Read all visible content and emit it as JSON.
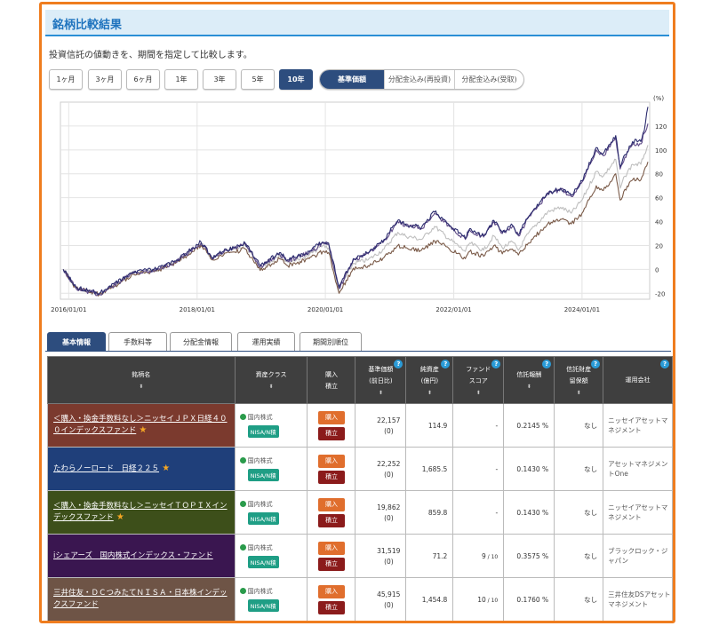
{
  "title": "銘柄比較結果",
  "description": "投資信託の値動きを、期間を指定して比較します。",
  "periods": [
    "1ヶ月",
    "3ヶ月",
    "6ヶ月",
    "1年",
    "3年",
    "5年",
    "10年"
  ],
  "active_period": "10年",
  "basis_tabs": [
    "基準価額",
    "分配金込み(再投資)",
    "分配金込み(受取)"
  ],
  "active_basis": "基準価額",
  "chart_data": {
    "type": "line",
    "title": "",
    "ylabel": "(%)",
    "ylim": [
      -25,
      140
    ],
    "yticks": [
      -20,
      0,
      20,
      40,
      60,
      80,
      100,
      120
    ],
    "xlim": [
      "2015-11-15",
      "2025-01-20"
    ],
    "xtick_labels": [
      "2016/01/01",
      "2018/01/01",
      "2020/01/01",
      "2022/01/01",
      "2024/01/01"
    ],
    "xticks": [
      "2016-01-01",
      "2018-01-01",
      "2020-01-01",
      "2022-01-01",
      "2024-01-01"
    ],
    "grid": true,
    "series": [
      {
        "color": "#bfbfbf",
        "points": [
          [
            "2015-12-01",
            0
          ],
          [
            "2016-02-12",
            -16
          ],
          [
            "2016-06-24",
            -21
          ],
          [
            "2016-11-01",
            -9
          ],
          [
            "2017-01-01",
            -3
          ],
          [
            "2017-05-01",
            -1
          ],
          [
            "2017-09-01",
            6
          ],
          [
            "2018-01-23",
            22
          ],
          [
            "2018-03-26",
            9
          ],
          [
            "2018-06-01",
            14
          ],
          [
            "2018-10-02",
            20
          ],
          [
            "2018-12-26",
            1
          ],
          [
            "2019-04-15",
            12
          ],
          [
            "2019-06-01",
            6
          ],
          [
            "2019-10-01",
            12
          ],
          [
            "2019-12-17",
            20
          ],
          [
            "2020-01-20",
            18
          ],
          [
            "2020-03-19",
            -17
          ],
          [
            "2020-06-08",
            5
          ],
          [
            "2020-09-01",
            8
          ],
          [
            "2020-11-30",
            17
          ],
          [
            "2021-02-16",
            31
          ],
          [
            "2021-04-01",
            28
          ],
          [
            "2021-07-01",
            25
          ],
          [
            "2021-09-14",
            36
          ],
          [
            "2021-12-01",
            26
          ],
          [
            "2022-03-08",
            15
          ],
          [
            "2022-04-01",
            22
          ],
          [
            "2022-06-20",
            16
          ],
          [
            "2022-08-17",
            28
          ],
          [
            "2022-10-04",
            18
          ],
          [
            "2022-12-01",
            23
          ],
          [
            "2023-01-04",
            16
          ],
          [
            "2023-03-01",
            30
          ],
          [
            "2023-06-19",
            48
          ],
          [
            "2023-09-01",
            52
          ],
          [
            "2023-11-01",
            47
          ],
          [
            "2024-01-01",
            58
          ],
          [
            "2024-03-22",
            82
          ],
          [
            "2024-05-01",
            78
          ],
          [
            "2024-07-11",
            92
          ],
          [
            "2024-08-05",
            68
          ],
          [
            "2024-09-01",
            78
          ],
          [
            "2024-10-15",
            88
          ],
          [
            "2024-12-01",
            88
          ],
          [
            "2024-12-20",
            96
          ],
          [
            "2025-01-10",
            104
          ]
        ]
      },
      {
        "color": "#7a5a48",
        "points": [
          [
            "2015-12-01",
            0
          ],
          [
            "2016-02-12",
            -16
          ],
          [
            "2016-06-24",
            -21
          ],
          [
            "2016-11-01",
            -10
          ],
          [
            "2017-01-01",
            -4
          ],
          [
            "2017-05-01",
            -2
          ],
          [
            "2017-09-01",
            5
          ],
          [
            "2018-01-23",
            20
          ],
          [
            "2018-03-26",
            8
          ],
          [
            "2018-06-01",
            12
          ],
          [
            "2018-10-02",
            17
          ],
          [
            "2018-12-26",
            -1
          ],
          [
            "2019-04-15",
            9
          ],
          [
            "2019-06-01",
            3
          ],
          [
            "2019-10-01",
            9
          ],
          [
            "2019-12-17",
            15
          ],
          [
            "2020-01-20",
            14
          ],
          [
            "2020-03-19",
            -20
          ],
          [
            "2020-06-08",
            1
          ],
          [
            "2020-09-01",
            3
          ],
          [
            "2020-11-30",
            10
          ],
          [
            "2021-02-16",
            20
          ],
          [
            "2021-04-01",
            18
          ],
          [
            "2021-07-01",
            16
          ],
          [
            "2021-09-14",
            24
          ],
          [
            "2021-12-01",
            18
          ],
          [
            "2022-03-08",
            9
          ],
          [
            "2022-04-01",
            15
          ],
          [
            "2022-06-20",
            11
          ],
          [
            "2022-08-17",
            20
          ],
          [
            "2022-10-04",
            13
          ],
          [
            "2022-12-01",
            17
          ],
          [
            "2023-01-04",
            12
          ],
          [
            "2023-03-01",
            22
          ],
          [
            "2023-06-19",
            38
          ],
          [
            "2023-09-01",
            42
          ],
          [
            "2023-11-01",
            38
          ],
          [
            "2024-01-01",
            47
          ],
          [
            "2024-03-22",
            70
          ],
          [
            "2024-05-01",
            66
          ],
          [
            "2024-07-11",
            80
          ],
          [
            "2024-08-05",
            58
          ],
          [
            "2024-09-01",
            67
          ],
          [
            "2024-10-15",
            75
          ],
          [
            "2024-12-01",
            75
          ],
          [
            "2024-12-20",
            83
          ],
          [
            "2025-01-10",
            90
          ]
        ]
      },
      {
        "color": "#5f4a88",
        "points": [
          [
            "2015-12-01",
            0
          ],
          [
            "2016-02-12",
            -16
          ],
          [
            "2016-06-24",
            -21
          ],
          [
            "2016-11-01",
            -9
          ],
          [
            "2017-01-01",
            -3
          ],
          [
            "2017-05-01",
            -1
          ],
          [
            "2017-09-01",
            6
          ],
          [
            "2018-01-23",
            22
          ],
          [
            "2018-03-26",
            9
          ],
          [
            "2018-06-01",
            14
          ],
          [
            "2018-10-02",
            21
          ],
          [
            "2018-12-26",
            2
          ],
          [
            "2019-04-15",
            13
          ],
          [
            "2019-06-01",
            7
          ],
          [
            "2019-10-01",
            14
          ],
          [
            "2019-12-17",
            22
          ],
          [
            "2020-01-20",
            21
          ],
          [
            "2020-03-19",
            -16
          ],
          [
            "2020-06-08",
            8
          ],
          [
            "2020-09-01",
            13
          ],
          [
            "2020-11-30",
            24
          ],
          [
            "2021-02-16",
            40
          ],
          [
            "2021-04-01",
            37
          ],
          [
            "2021-07-01",
            34
          ],
          [
            "2021-09-14",
            47
          ],
          [
            "2021-12-01",
            37
          ],
          [
            "2022-03-08",
            25
          ],
          [
            "2022-04-01",
            33
          ],
          [
            "2022-06-20",
            27
          ],
          [
            "2022-08-17",
            40
          ],
          [
            "2022-10-04",
            30
          ],
          [
            "2022-12-01",
            36
          ],
          [
            "2023-01-04",
            28
          ],
          [
            "2023-03-01",
            43
          ],
          [
            "2023-06-19",
            63
          ],
          [
            "2023-09-01",
            67
          ],
          [
            "2023-11-01",
            61
          ],
          [
            "2024-01-01",
            73
          ],
          [
            "2024-03-22",
            100
          ],
          [
            "2024-05-01",
            95
          ],
          [
            "2024-07-11",
            110
          ],
          [
            "2024-08-05",
            84
          ],
          [
            "2024-09-01",
            94
          ],
          [
            "2024-10-15",
            105
          ],
          [
            "2024-12-01",
            105
          ],
          [
            "2024-12-20",
            114
          ],
          [
            "2025-01-10",
            122
          ]
        ]
      },
      {
        "color": "#2b2b6e",
        "points": [
          [
            "2015-12-01",
            0
          ],
          [
            "2016-02-12",
            -15
          ],
          [
            "2016-06-24",
            -20
          ],
          [
            "2016-11-01",
            -8
          ],
          [
            "2017-01-01",
            -2
          ],
          [
            "2017-05-01",
            0
          ],
          [
            "2017-09-01",
            7
          ],
          [
            "2018-01-23",
            23
          ],
          [
            "2018-03-26",
            10
          ],
          [
            "2018-06-01",
            15
          ],
          [
            "2018-10-02",
            22
          ],
          [
            "2018-12-26",
            3
          ],
          [
            "2019-04-15",
            14
          ],
          [
            "2019-06-01",
            8
          ],
          [
            "2019-10-01",
            15
          ],
          [
            "2019-12-17",
            23
          ],
          [
            "2020-01-20",
            22
          ],
          [
            "2020-03-19",
            -15
          ],
          [
            "2020-06-08",
            9
          ],
          [
            "2020-09-01",
            14
          ],
          [
            "2020-11-30",
            25
          ],
          [
            "2021-02-16",
            41
          ],
          [
            "2021-04-01",
            38
          ],
          [
            "2021-07-01",
            35
          ],
          [
            "2021-09-14",
            48
          ],
          [
            "2021-12-01",
            38
          ],
          [
            "2022-03-08",
            26
          ],
          [
            "2022-04-01",
            34
          ],
          [
            "2022-06-20",
            28
          ],
          [
            "2022-08-17",
            41
          ],
          [
            "2022-10-04",
            31
          ],
          [
            "2022-12-01",
            37
          ],
          [
            "2023-01-04",
            29
          ],
          [
            "2023-03-01",
            44
          ],
          [
            "2023-06-19",
            64
          ],
          [
            "2023-09-01",
            68
          ],
          [
            "2023-11-01",
            62
          ],
          [
            "2024-01-01",
            74
          ],
          [
            "2024-03-22",
            102
          ],
          [
            "2024-05-01",
            97
          ],
          [
            "2024-07-11",
            112
          ],
          [
            "2024-08-05",
            86
          ],
          [
            "2024-09-01",
            96
          ],
          [
            "2024-10-15",
            107
          ],
          [
            "2024-12-01",
            107
          ],
          [
            "2024-12-20",
            116
          ],
          [
            "2025-01-10",
            136
          ]
        ]
      }
    ]
  },
  "detail_tabs": [
    "基本情報",
    "手数料等",
    "分配金情報",
    "運用実績",
    "期間別順位"
  ],
  "active_detail_tab": "基本情報",
  "table": {
    "headers": [
      {
        "label": "銘柄名",
        "sort": true,
        "help": false
      },
      {
        "label": "資産クラス",
        "sort": true,
        "help": false
      },
      {
        "label": "購入\n積立",
        "sort": false,
        "help": false
      },
      {
        "label": "基準価額\n(前日比)",
        "sort": true,
        "help": true
      },
      {
        "label": "純資産\n(億円)",
        "sort": true,
        "help": true
      },
      {
        "label": "ファンド\nスコア",
        "sort": true,
        "help": true
      },
      {
        "label": "信託報酬",
        "sort": true,
        "help": true
      },
      {
        "label": "信託財産\n留保額",
        "sort": true,
        "help": true
      },
      {
        "label": "運用会社",
        "sort": false,
        "help": true
      }
    ],
    "sort_icon": "⬍",
    "help_icon": "?",
    "asset_label": "国内株式",
    "nisa_label": "NISA/N積",
    "buy_label": "購入",
    "accumulate_label": "積立",
    "star_icon": "★",
    "rows": [
      {
        "name": "＜購入・換金手数料なし＞ニッセイＪＰＸ日経４００インデックスファンド",
        "star": true,
        "color": "#7b3a2e",
        "price": "22,157",
        "diff": "(0)",
        "assets": "114.9",
        "score": "-",
        "fee": "0.2145 %",
        "reserve": "なし",
        "company": "ニッセイアセットマネジメント"
      },
      {
        "name": "たわらノーロード　日経２２５",
        "star": true,
        "color": "#1f3f7a",
        "price": "22,252",
        "diff": "(0)",
        "assets": "1,685.5",
        "score": "-",
        "fee": "0.1430 %",
        "reserve": "なし",
        "company": "アセットマネジメントOne"
      },
      {
        "name": "＜購入・換金手数料なし＞ニッセイＴＯＰＩＸインデックスファンド",
        "star": true,
        "color": "#3d4f1a",
        "price": "19,862",
        "diff": "(0)",
        "assets": "859.8",
        "score": "-",
        "fee": "0.1430 %",
        "reserve": "なし",
        "company": "ニッセイアセットマネジメント"
      },
      {
        "name": "iシェアーズ　国内株式インデックス・ファンド",
        "star": false,
        "color": "#3a1650",
        "price": "31,519",
        "diff": "(0)",
        "assets": "71.2",
        "score": "9",
        "score_of": "/ 10",
        "fee": "0.3575 %",
        "reserve": "なし",
        "company": "ブラックロック・ジャパン"
      },
      {
        "name": "三井住友・ＤＣつみたてＮＩＳＡ・日本株インデックスファンド",
        "star": false,
        "color": "#6e5446",
        "price": "45,915",
        "diff": "(0)",
        "assets": "1,454.8",
        "score": "10",
        "score_of": "/ 10",
        "fee": "0.1760 %",
        "reserve": "なし",
        "company": "三井住友DSアセットマネジメント"
      }
    ]
  }
}
